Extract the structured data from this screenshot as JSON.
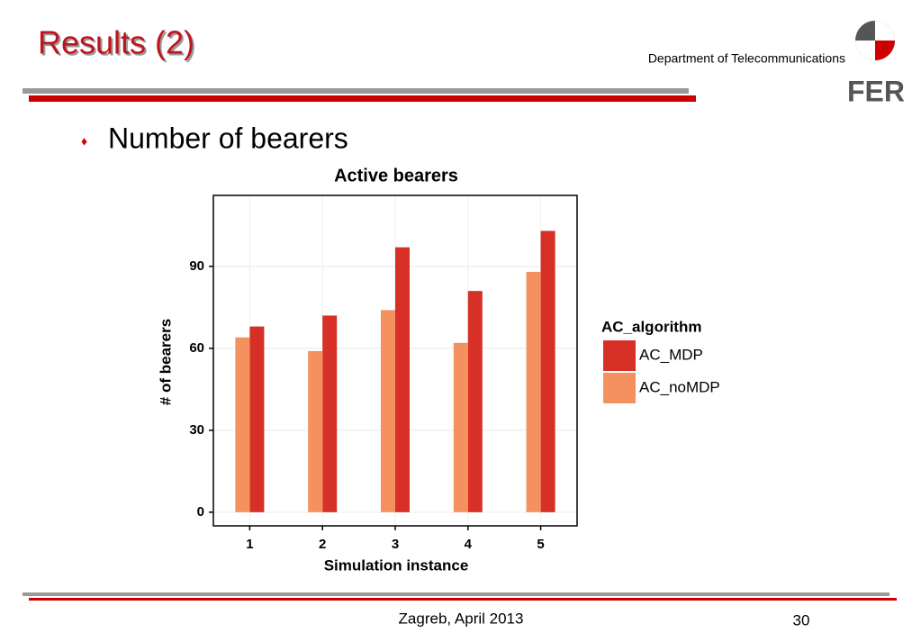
{
  "slide": {
    "title": "Results (2)",
    "department": "Department of Telecommunications",
    "logo_text": "FER",
    "bullet": "Number of bearers",
    "footer": "Zagreb, April 2013",
    "page_number": "30"
  },
  "chart_data": {
    "type": "bar",
    "title": "Active bearers",
    "x_label": "Simulation instance",
    "y_label": "# of bearers",
    "categories": [
      "1",
      "2",
      "3",
      "4",
      "5"
    ],
    "legend_title": "AC_algorithm",
    "series": [
      {
        "name": "AC_MDP",
        "color": "#d63027",
        "values": [
          68,
          72,
          97,
          81,
          103
        ]
      },
      {
        "name": "AC_noMDP",
        "color": "#f4915e",
        "values": [
          64,
          59,
          74,
          62,
          88
        ]
      }
    ],
    "ylim": [
      -5,
      116
    ],
    "yticks": [
      0,
      30,
      60,
      90
    ],
    "grid": true,
    "legend": "right"
  }
}
